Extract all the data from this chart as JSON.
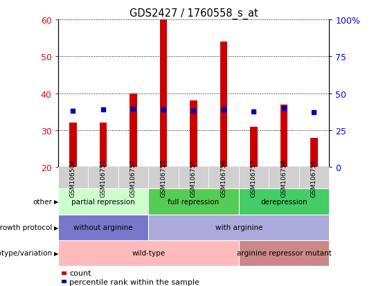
{
  "title": "GDS2427 / 1760558_s_at",
  "samples": [
    "GSM106504",
    "GSM106751",
    "GSM106752",
    "GSM106753",
    "GSM106755",
    "GSM106756",
    "GSM106757",
    "GSM106758",
    "GSM106759"
  ],
  "counts": [
    32,
    32,
    40,
    60,
    38,
    54,
    31,
    37,
    28
  ],
  "percentile_ranks": [
    38,
    39,
    39.5,
    39,
    38,
    39,
    37.5,
    40,
    37
  ],
  "ylim_left": [
    20,
    60
  ],
  "ylim_right": [
    0,
    100
  ],
  "left_ticks": [
    20,
    30,
    40,
    50,
    60
  ],
  "right_ticks": [
    0,
    25,
    50,
    75,
    100
  ],
  "bar_color": "#cc0000",
  "dot_color": "#0000bb",
  "bar_bottom": 20,
  "annotation_rows": [
    {
      "label": "other",
      "segments": [
        {
          "text": "partial repression",
          "start": 0,
          "end": 3,
          "color": "#ccffcc"
        },
        {
          "text": "full repression",
          "start": 3,
          "end": 6,
          "color": "#55cc55"
        },
        {
          "text": "derepression",
          "start": 6,
          "end": 9,
          "color": "#44cc66"
        }
      ]
    },
    {
      "label": "growth protocol",
      "segments": [
        {
          "text": "without arginine",
          "start": 0,
          "end": 3,
          "color": "#7777cc"
        },
        {
          "text": "with arginine",
          "start": 3,
          "end": 9,
          "color": "#aaaadd"
        }
      ]
    },
    {
      "label": "genotype/variation",
      "segments": [
        {
          "text": "wild-type",
          "start": 0,
          "end": 6,
          "color": "#ffbbbb"
        },
        {
          "text": "arginine repressor mutant",
          "start": 6,
          "end": 9,
          "color": "#cc8888"
        }
      ]
    }
  ],
  "legend_items": [
    {
      "label": "count",
      "color": "#cc0000"
    },
    {
      "label": "percentile rank within the sample",
      "color": "#0000bb"
    }
  ]
}
